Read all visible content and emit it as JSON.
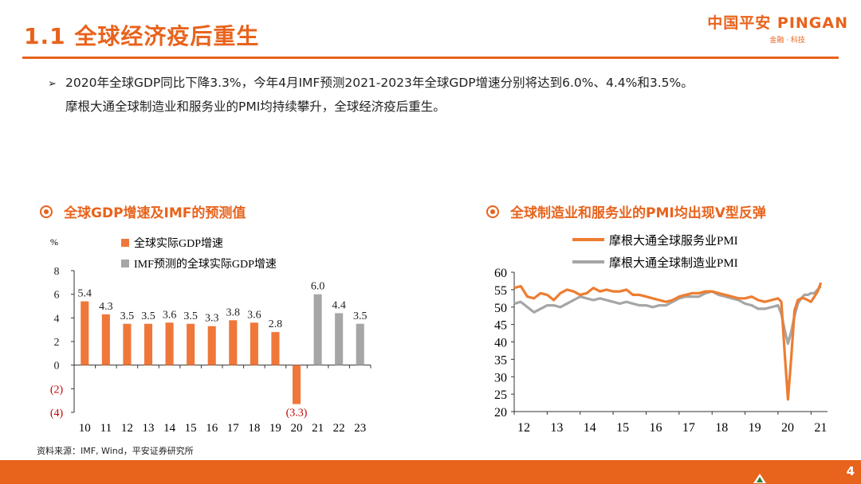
{
  "header": {
    "title": "1.1 全球经济疫后重生",
    "logo_text": "中国平安 PINGAN",
    "logo_sub": "金融 · 科技"
  },
  "bullet": {
    "arrow": "➢",
    "line1": "2020年全球GDP同比下降3.3%，今年4月IMF预测2021-2023年全球GDP增速分别将达到6.0%、4.4%和3.5%。",
    "line2": "摩根大通全球制造业和服务业的PMI均持续攀升，全球经济疫后重生。"
  },
  "source": "资料来源：IMF, Wind，平安证券研究所",
  "footer": {
    "page_number": "4"
  },
  "colors": {
    "accent": "#e8631c",
    "bar_actual": "#f0773a",
    "bar_forecast": "#a6a6a6"
  },
  "chart_data": [
    {
      "type": "bar",
      "title": "全球GDP增速及IMF的预测值",
      "ylabel": "%",
      "ylim": [
        -4,
        8
      ],
      "yticks": [
        8,
        6,
        4,
        2,
        0,
        -2,
        -4
      ],
      "ytick_labels": [
        "8",
        "6",
        "4",
        "2",
        "0",
        "(2)",
        "(4)"
      ],
      "categories": [
        "10",
        "11",
        "12",
        "13",
        "14",
        "15",
        "16",
        "17",
        "18",
        "19",
        "20",
        "21",
        "22",
        "23"
      ],
      "values": [
        5.4,
        4.3,
        3.5,
        3.5,
        3.6,
        3.5,
        3.3,
        3.8,
        3.6,
        2.8,
        -3.3,
        6.0,
        4.4,
        3.5
      ],
      "value_labels": [
        "5.4",
        "4.3",
        "3.5",
        "3.5",
        "3.6",
        "3.5",
        "3.3",
        "3.8",
        "3.6",
        "2.8",
        "(3.3)",
        "6.0",
        "4.4",
        "3.5"
      ],
      "forecast": [
        false,
        false,
        false,
        false,
        false,
        false,
        false,
        false,
        false,
        false,
        false,
        true,
        true,
        true
      ],
      "legend": [
        "全球实际GDP增速",
        "IMF预测的全球实际GDP增速"
      ]
    },
    {
      "type": "line",
      "title": "全球制造业和服务业的PMI均出现V型反弹",
      "ylim": [
        20,
        60
      ],
      "yticks": [
        60,
        55,
        50,
        45,
        40,
        35,
        30,
        25,
        20
      ],
      "xlim": [
        2012,
        2021.5
      ],
      "xticks": [
        "12",
        "13",
        "14",
        "15",
        "16",
        "17",
        "18",
        "19",
        "20",
        "21"
      ],
      "series": [
        {
          "name": "摩根大通全球服务业PMI",
          "color": "#ed7d31",
          "x": [
            2012.0,
            2012.2,
            2012.4,
            2012.6,
            2012.8,
            2013.0,
            2013.2,
            2013.4,
            2013.6,
            2013.8,
            2014.0,
            2014.2,
            2014.4,
            2014.6,
            2014.8,
            2015.0,
            2015.2,
            2015.4,
            2015.6,
            2015.8,
            2016.0,
            2016.2,
            2016.4,
            2016.6,
            2016.8,
            2017.0,
            2017.2,
            2017.4,
            2017.6,
            2017.8,
            2018.0,
            2018.2,
            2018.4,
            2018.6,
            2018.8,
            2019.0,
            2019.2,
            2019.4,
            2019.6,
            2019.8,
            2020.0,
            2020.1,
            2020.2,
            2020.3,
            2020.4,
            2020.5,
            2020.6,
            2020.7,
            2020.8,
            2020.9,
            2021.0,
            2021.1,
            2021.2,
            2021.3
          ],
          "y": [
            55.5,
            56.0,
            53.0,
            52.5,
            54.0,
            53.5,
            52.0,
            54.0,
            55.0,
            54.5,
            53.5,
            54.0,
            55.5,
            54.5,
            55.0,
            54.5,
            54.5,
            55.0,
            53.5,
            53.5,
            53.0,
            52.5,
            52.0,
            51.5,
            52.0,
            53.0,
            53.5,
            54.0,
            54.0,
            54.5,
            54.5,
            54.0,
            53.5,
            53.0,
            52.5,
            52.5,
            53.0,
            52.0,
            51.5,
            52.0,
            52.5,
            51.5,
            37.0,
            23.5,
            35.5,
            49.0,
            52.0,
            52.5,
            52.5,
            52.0,
            51.5,
            53.0,
            54.5,
            57.0
          ]
        },
        {
          "name": "摩根大通全球制造业PMI",
          "color": "#a6a6a6",
          "x": [
            2012.0,
            2012.2,
            2012.4,
            2012.6,
            2012.8,
            2013.0,
            2013.2,
            2013.4,
            2013.6,
            2013.8,
            2014.0,
            2014.2,
            2014.4,
            2014.6,
            2014.8,
            2015.0,
            2015.2,
            2015.4,
            2015.6,
            2015.8,
            2016.0,
            2016.2,
            2016.4,
            2016.6,
            2016.8,
            2017.0,
            2017.2,
            2017.4,
            2017.6,
            2017.8,
            2018.0,
            2018.2,
            2018.4,
            2018.6,
            2018.8,
            2019.0,
            2019.2,
            2019.4,
            2019.6,
            2019.8,
            2020.0,
            2020.1,
            2020.2,
            2020.3,
            2020.4,
            2020.5,
            2020.6,
            2020.7,
            2020.8,
            2020.9,
            2021.0,
            2021.1,
            2021.2,
            2021.3
          ],
          "y": [
            51.0,
            51.5,
            50.0,
            48.5,
            49.5,
            50.5,
            50.5,
            50.0,
            51.0,
            52.0,
            53.0,
            52.5,
            52.0,
            52.5,
            52.0,
            51.5,
            51.0,
            51.5,
            51.0,
            50.5,
            50.5,
            50.0,
            50.5,
            50.5,
            51.5,
            52.5,
            53.0,
            53.0,
            53.0,
            54.0,
            54.5,
            53.5,
            53.0,
            52.5,
            52.0,
            51.0,
            50.5,
            49.5,
            49.5,
            50.0,
            50.5,
            48.0,
            43.5,
            39.5,
            43.0,
            47.5,
            51.0,
            52.5,
            53.5,
            53.5,
            54.0,
            54.0,
            55.0,
            56.0
          ]
        }
      ]
    }
  ],
  "chart_titles_text": {
    "left": "全球GDP增速及IMF的预测值",
    "right": "全球制造业和服务业的PMI均出现V型反弹"
  }
}
